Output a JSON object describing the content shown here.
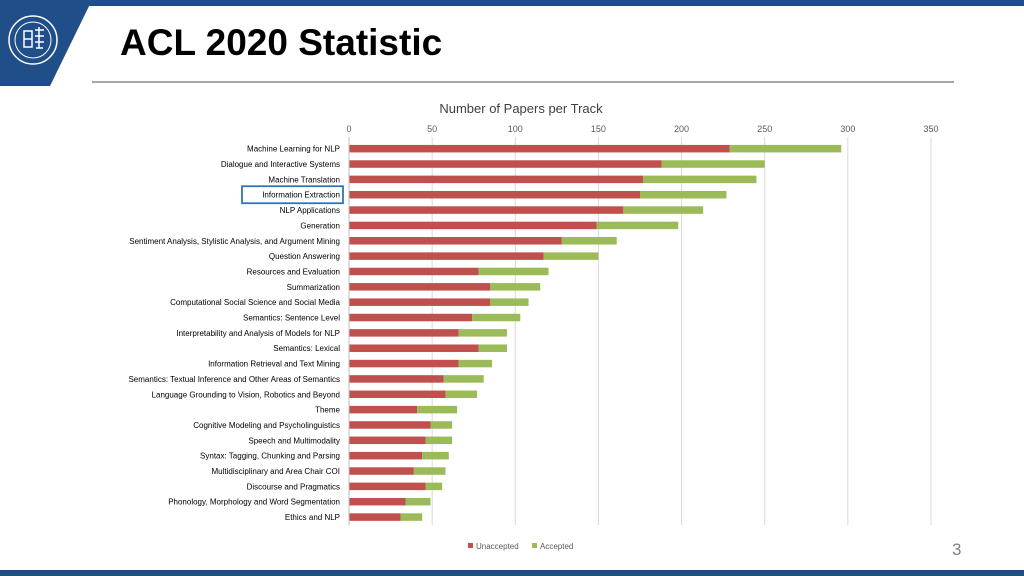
{
  "slide": {
    "title": "ACL 2020 Statistic",
    "page_number": "3",
    "colors": {
      "brand": "#1f4e89",
      "highlight_box": "#2e75b6"
    }
  },
  "chart_data": {
    "type": "bar",
    "orientation": "horizontal",
    "stacked": true,
    "title": "Number of Papers per Track",
    "xlabel": "",
    "ylabel": "",
    "xlim": [
      0,
      350
    ],
    "xticks": [
      0,
      50,
      100,
      150,
      200,
      250,
      300,
      350
    ],
    "grid": true,
    "legend_position": "bottom",
    "highlighted_category": "Information Extraction",
    "categories": [
      "Machine Learning for NLP",
      "Dialogue and Interactive Systems",
      "Machine Translation",
      "Information Extraction",
      "NLP Applications",
      "Generation",
      "Sentiment Analysis, Stylistic Analysis, and Argument Mining",
      "Question Answering",
      "Resources and Evaluation",
      "Summarization",
      "Computational Social Science and Social Media",
      "Semantics: Sentence Level",
      "Interpretability and Analysis of Models for NLP",
      "Semantics: Lexical",
      "Information Retrieval and Text Mining",
      "Semantics: Textual Inference and Other Areas of Semantics",
      "Language Grounding to Vision, Robotics and Beyond",
      "Theme",
      "Cognitive Modeling and Psycholinguistics",
      "Speech and Multimodality",
      "Syntax: Tagging, Chunking and Parsing",
      "Multidisciplinary and Area Chair COI",
      "Discourse and Pragmatics",
      "Phonology, Morphology and Word Segmentation",
      "Ethics and NLP"
    ],
    "series": [
      {
        "name": "Unaccepted",
        "color": "#c0504d",
        "values": [
          229,
          188,
          177,
          175,
          165,
          149,
          128,
          117,
          78,
          85,
          85,
          74,
          66,
          78,
          66,
          57,
          58,
          41,
          49,
          46,
          44,
          39,
          46,
          34,
          31
        ]
      },
      {
        "name": "Accepted",
        "color": "#9bbb59",
        "values": [
          67,
          62,
          68,
          52,
          48,
          49,
          33,
          33,
          42,
          30,
          23,
          29,
          29,
          17,
          20,
          24,
          19,
          24,
          13,
          16,
          16,
          19,
          10,
          15,
          13
        ]
      }
    ]
  }
}
